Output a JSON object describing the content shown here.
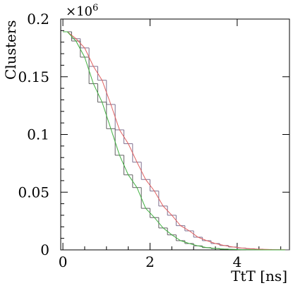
{
  "chart_data": {
    "type": "histogram",
    "xlabel": "TtT [ns]",
    "ylabel": "Clusters",
    "y_multiplier": "×10",
    "y_multiplier_exp": "6",
    "xlim": [
      -0.05,
      5.2
    ],
    "ylim": [
      0,
      200000
    ],
    "x_ticks": [
      {
        "value": 0,
        "label": "0"
      },
      {
        "value": 2,
        "label": "2"
      },
      {
        "value": 4,
        "label": "4"
      }
    ],
    "y_ticks": [
      {
        "value": 0,
        "label": "0"
      },
      {
        "value": 50000,
        "label": "0.05"
      },
      {
        "value": 100000,
        "label": "0.1"
      },
      {
        "value": 150000,
        "label": "0.15"
      },
      {
        "value": 200000,
        "label": "0.2"
      }
    ],
    "bin_width": 0.2,
    "series": [
      {
        "color": "#7f6f8f",
        "fit_color": "#e06060",
        "x": [
          0.0,
          0.2,
          0.4,
          0.6,
          0.8,
          1.0,
          1.2,
          1.4,
          1.6,
          1.8,
          2.0,
          2.2,
          2.4,
          2.6,
          2.8,
          3.0,
          3.2,
          3.4,
          3.6,
          3.8,
          4.0,
          4.2,
          4.4,
          4.6,
          4.8,
          5.0
        ],
        "values": [
          189000,
          183000,
          175000,
          159000,
          147000,
          126000,
          104000,
          92000,
          76000,
          61000,
          51000,
          38000,
          30000,
          21000,
          16500,
          11000,
          8000,
          5500,
          3800,
          2500,
          1600,
          1000,
          600,
          350,
          200,
          100
        ]
      },
      {
        "color": "#606060",
        "fit_color": "#40b040",
        "x": [
          0.0,
          0.2,
          0.4,
          0.6,
          0.8,
          1.0,
          1.2,
          1.4,
          1.6,
          1.8,
          2.0,
          2.2,
          2.4,
          2.6,
          2.8,
          3.0,
          3.2,
          3.4,
          3.6,
          3.8,
          4.0,
          4.2,
          4.4,
          4.6,
          4.8,
          5.0
        ],
        "values": [
          189000,
          181000,
          167000,
          144000,
          128000,
          105000,
          82000,
          65000,
          54000,
          36000,
          28000,
          19000,
          13000,
          8000,
          5500,
          3500,
          2000,
          1200,
          700,
          400,
          200,
          100,
          60,
          30,
          15,
          5
        ]
      }
    ]
  }
}
